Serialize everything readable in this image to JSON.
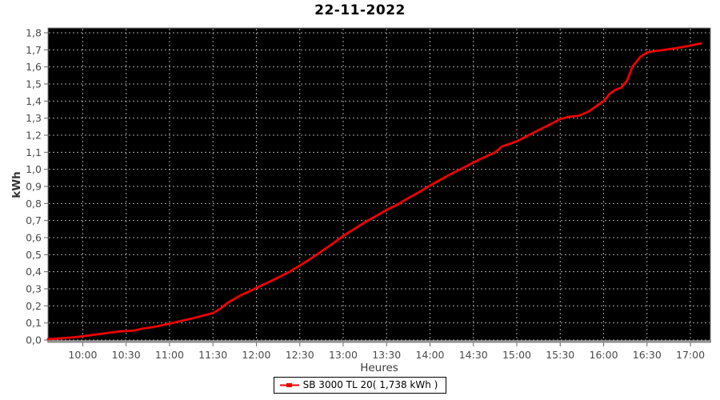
{
  "title": "22-11-2022",
  "axes": {
    "x_label": "Heures",
    "y_label": "kWh"
  },
  "legend": {
    "label": "SB 3000 TL 20( 1,738 kWh )"
  },
  "colors": {
    "plot_background": "#000000",
    "grid": "#c3c3c3",
    "series_red": "#ee0000",
    "axis_line": "#999999",
    "tick_text": "#4a4a4a"
  },
  "chart_data": {
    "type": "line",
    "title": "22-11-2022",
    "xlabel": "Heures",
    "ylabel": "kWh",
    "xlim": [
      9.6,
      17.23
    ],
    "ylim": [
      0,
      1.8
    ],
    "grid": true,
    "background": "#000000",
    "grid_color": "#c3c3c3",
    "legend_position": "bottom",
    "x_ticks": [
      {
        "value": 10.0,
        "label": "10:00"
      },
      {
        "value": 10.5,
        "label": "10:30"
      },
      {
        "value": 11.0,
        "label": "11:00"
      },
      {
        "value": 11.5,
        "label": "11:30"
      },
      {
        "value": 12.0,
        "label": "12:00"
      },
      {
        "value": 12.5,
        "label": "12:30"
      },
      {
        "value": 13.0,
        "label": "13:00"
      },
      {
        "value": 13.5,
        "label": "13:30"
      },
      {
        "value": 14.0,
        "label": "14:00"
      },
      {
        "value": 14.5,
        "label": "14:30"
      },
      {
        "value": 15.0,
        "label": "15:00"
      },
      {
        "value": 15.5,
        "label": "15:30"
      },
      {
        "value": 16.0,
        "label": "16:00"
      },
      {
        "value": 16.5,
        "label": "16:30"
      },
      {
        "value": 17.0,
        "label": "17:00"
      }
    ],
    "y_ticks": [
      {
        "value": 0.0,
        "label": "0,0"
      },
      {
        "value": 0.1,
        "label": "0,1"
      },
      {
        "value": 0.2,
        "label": "0,2"
      },
      {
        "value": 0.3,
        "label": "0,3"
      },
      {
        "value": 0.4,
        "label": "0,4"
      },
      {
        "value": 0.5,
        "label": "0,5"
      },
      {
        "value": 0.6,
        "label": "0,6"
      },
      {
        "value": 0.7,
        "label": "0,7"
      },
      {
        "value": 0.8,
        "label": "0,8"
      },
      {
        "value": 0.9,
        "label": "0,9"
      },
      {
        "value": 1.0,
        "label": "1,0"
      },
      {
        "value": 1.1,
        "label": "1,1"
      },
      {
        "value": 1.2,
        "label": "1,2"
      },
      {
        "value": 1.3,
        "label": "1,3"
      },
      {
        "value": 1.4,
        "label": "1,4"
      },
      {
        "value": 1.5,
        "label": "1,5"
      },
      {
        "value": 1.6,
        "label": "1,6"
      },
      {
        "value": 1.7,
        "label": "1,7"
      },
      {
        "value": 1.8,
        "label": "1,8"
      }
    ],
    "series": [
      {
        "name": "SB 3000 TL 20( 1,738 kWh )",
        "color": "#ee0000",
        "total_kwh": "1,738",
        "points": [
          [
            9.6,
            0.005
          ],
          [
            9.7,
            0.008
          ],
          [
            9.8,
            0.012
          ],
          [
            9.9,
            0.016
          ],
          [
            10.0,
            0.022
          ],
          [
            10.15,
            0.032
          ],
          [
            10.3,
            0.042
          ],
          [
            10.42,
            0.05
          ],
          [
            10.5,
            0.052
          ],
          [
            10.6,
            0.056
          ],
          [
            10.68,
            0.066
          ],
          [
            10.8,
            0.075
          ],
          [
            10.9,
            0.085
          ],
          [
            11.0,
            0.096
          ],
          [
            11.1,
            0.108
          ],
          [
            11.25,
            0.125
          ],
          [
            11.4,
            0.145
          ],
          [
            11.5,
            0.158
          ],
          [
            11.58,
            0.182
          ],
          [
            11.67,
            0.218
          ],
          [
            11.75,
            0.242
          ],
          [
            11.83,
            0.265
          ],
          [
            11.92,
            0.285
          ],
          [
            12.0,
            0.305
          ],
          [
            12.13,
            0.336
          ],
          [
            12.25,
            0.366
          ],
          [
            12.38,
            0.4
          ],
          [
            12.5,
            0.436
          ],
          [
            12.63,
            0.478
          ],
          [
            12.75,
            0.52
          ],
          [
            12.88,
            0.565
          ],
          [
            13.0,
            0.61
          ],
          [
            13.13,
            0.652
          ],
          [
            13.25,
            0.69
          ],
          [
            13.38,
            0.727
          ],
          [
            13.5,
            0.762
          ],
          [
            13.63,
            0.795
          ],
          [
            13.75,
            0.832
          ],
          [
            13.88,
            0.868
          ],
          [
            14.0,
            0.905
          ],
          [
            14.13,
            0.942
          ],
          [
            14.25,
            0.975
          ],
          [
            14.38,
            1.008
          ],
          [
            14.5,
            1.04
          ],
          [
            14.63,
            1.072
          ],
          [
            14.75,
            1.1
          ],
          [
            14.83,
            1.135
          ],
          [
            14.92,
            1.15
          ],
          [
            15.0,
            1.165
          ],
          [
            15.13,
            1.198
          ],
          [
            15.25,
            1.23
          ],
          [
            15.38,
            1.262
          ],
          [
            15.5,
            1.295
          ],
          [
            15.6,
            1.308
          ],
          [
            15.72,
            1.315
          ],
          [
            15.83,
            1.34
          ],
          [
            15.92,
            1.372
          ],
          [
            16.0,
            1.4
          ],
          [
            16.07,
            1.443
          ],
          [
            16.13,
            1.465
          ],
          [
            16.2,
            1.478
          ],
          [
            16.27,
            1.52
          ],
          [
            16.33,
            1.6
          ],
          [
            16.42,
            1.658
          ],
          [
            16.5,
            1.685
          ],
          [
            16.58,
            1.692
          ],
          [
            16.7,
            1.7
          ],
          [
            16.83,
            1.71
          ],
          [
            16.92,
            1.718
          ],
          [
            17.0,
            1.725
          ],
          [
            17.07,
            1.733
          ],
          [
            17.12,
            1.738
          ]
        ]
      }
    ]
  }
}
